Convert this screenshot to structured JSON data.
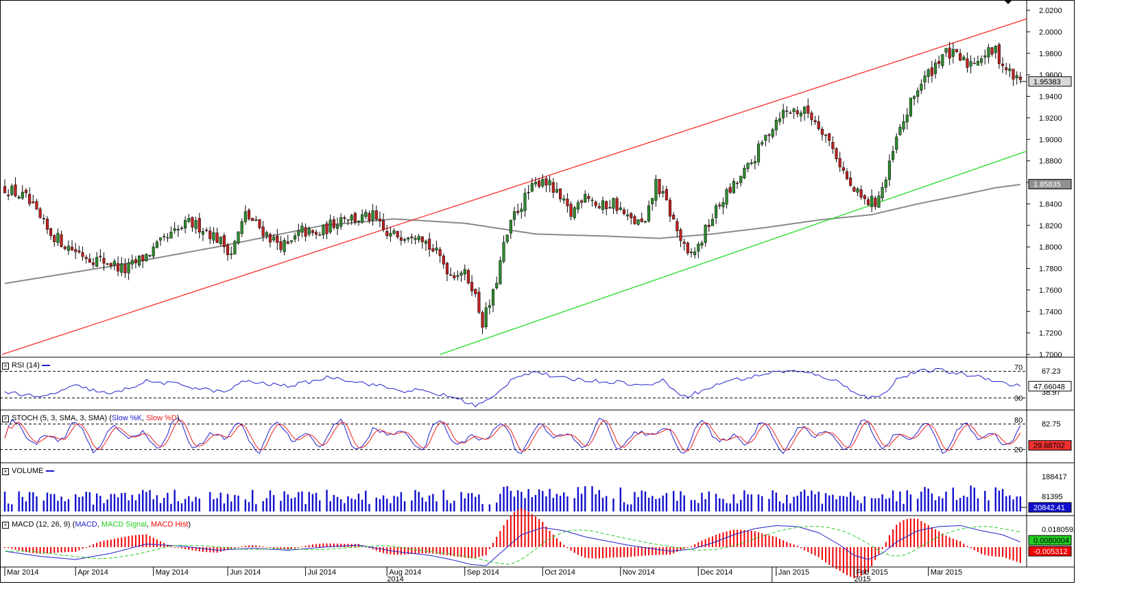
{
  "colors": {
    "bull": "#2e8b2e",
    "bear": "#c02020",
    "wick": "#000000",
    "channel_upper": "#ff2a2a",
    "channel_lower": "#22dd22",
    "ma": "#8a8a8a",
    "rsi": "#2020cc",
    "stoch_k": "#2020cc",
    "stoch_d": "#ee2020",
    "volume": "#1010cc",
    "macd": "#2020cc",
    "macd_signal": "#22cc22",
    "macd_hist": "#ee0000"
  },
  "chart_data": {
    "type": "candlestick",
    "instrument_price_last": "1.95383",
    "price_axis": {
      "range": [
        1.7,
        2.02
      ],
      "ticks": [
        "2.0200",
        "2.0000",
        "1.9800",
        "1.9600",
        "1.9400",
        "1.9200",
        "1.9000",
        "1.8800",
        "1.8600",
        "1.8400",
        "1.8200",
        "1.8000",
        "1.7800",
        "1.7600",
        "1.7400",
        "1.7200",
        "1.7000"
      ]
    },
    "ma_last": "1.85835",
    "months": [
      "Mar 2014",
      "Apr 2014",
      "May 2014",
      "Jun 2014",
      "Jul 2014",
      "Aug 2014",
      "Sep 2014",
      "Oct 2014",
      "Nov 2014",
      "Dec 2014",
      "Jan 2015",
      "Feb 2015",
      "Mar 2015"
    ],
    "years": [
      "2014",
      "2015"
    ],
    "channel": {
      "upper": {
        "from": {
          "date": "Mar 2014",
          "price": 1.7
        },
        "to": {
          "date": "Mar 2015",
          "price": 2.012
        }
      },
      "lower": {
        "from": {
          "date": "Aug 2014",
          "price": 1.7
        },
        "to": {
          "date": "Mar 2015",
          "price": 1.889
        }
      }
    },
    "close_path": [
      [
        0,
        1.855
      ],
      [
        6,
        1.845
      ],
      [
        12,
        1.815
      ],
      [
        18,
        1.8
      ],
      [
        24,
        1.79
      ],
      [
        30,
        1.785
      ],
      [
        34,
        1.778
      ],
      [
        40,
        1.792
      ],
      [
        46,
        1.808
      ],
      [
        52,
        1.822
      ],
      [
        56,
        1.818
      ],
      [
        60,
        1.808
      ],
      [
        64,
        1.795
      ],
      [
        68,
        1.83
      ],
      [
        72,
        1.818
      ],
      [
        76,
        1.806
      ],
      [
        80,
        1.8
      ],
      [
        84,
        1.815
      ],
      [
        88,
        1.81
      ],
      [
        92,
        1.82
      ],
      [
        96,
        1.83
      ],
      [
        99,
        1.826
      ],
      [
        104,
        1.828
      ],
      [
        108,
        1.81
      ],
      [
        113,
        1.812
      ],
      [
        117,
        1.815
      ],
      [
        120,
        1.8
      ],
      [
        123,
        1.79
      ],
      [
        126,
        1.775
      ],
      [
        129,
        1.778
      ],
      [
        132,
        1.765
      ],
      [
        135,
        1.73
      ],
      [
        138,
        1.755
      ],
      [
        141,
        1.8
      ],
      [
        144,
        1.83
      ],
      [
        148,
        1.85
      ],
      [
        152,
        1.865
      ],
      [
        156,
        1.848
      ],
      [
        160,
        1.83
      ],
      [
        164,
        1.852
      ],
      [
        168,
        1.836
      ],
      [
        172,
        1.842
      ],
      [
        176,
        1.826
      ],
      [
        181,
        1.82
      ],
      [
        184,
        1.86
      ],
      [
        187,
        1.84
      ],
      [
        190,
        1.815
      ],
      [
        193,
        1.79
      ],
      [
        196,
        1.8
      ],
      [
        199,
        1.822
      ],
      [
        203,
        1.845
      ],
      [
        207,
        1.86
      ],
      [
        211,
        1.878
      ],
      [
        215,
        1.902
      ],
      [
        219,
        1.924
      ],
      [
        223,
        1.927
      ],
      [
        227,
        1.925
      ],
      [
        231,
        1.91
      ],
      [
        235,
        1.885
      ],
      [
        239,
        1.855
      ],
      [
        243,
        1.842
      ],
      [
        246,
        1.842
      ],
      [
        249,
        1.862
      ],
      [
        252,
        1.9
      ],
      [
        255,
        1.925
      ],
      [
        258,
        1.948
      ],
      [
        262,
        1.965
      ],
      [
        265,
        1.98
      ],
      [
        268,
        1.978
      ],
      [
        272,
        1.97
      ],
      [
        276,
        1.978
      ],
      [
        280,
        1.982
      ],
      [
        282,
        1.97
      ],
      [
        285,
        1.958
      ],
      [
        287,
        1.954
      ]
    ],
    "ma_path": [
      [
        0,
        1.766
      ],
      [
        30,
        1.782
      ],
      [
        60,
        1.8
      ],
      [
        90,
        1.82
      ],
      [
        110,
        1.826
      ],
      [
        130,
        1.822
      ],
      [
        150,
        1.812
      ],
      [
        170,
        1.81
      ],
      [
        185,
        1.808
      ],
      [
        200,
        1.812
      ],
      [
        215,
        1.818
      ],
      [
        230,
        1.825
      ],
      [
        245,
        1.83
      ],
      [
        258,
        1.84
      ],
      [
        270,
        1.848
      ],
      [
        280,
        1.855
      ],
      [
        287,
        1.858
      ]
    ],
    "rsi": {
      "title": "RSI (14)",
      "levels": [
        "70",
        "30"
      ],
      "last": "47.66048",
      "labels": [
        "67.23",
        "38.97"
      ],
      "path": [
        [
          0,
          40
        ],
        [
          10,
          30
        ],
        [
          20,
          48
        ],
        [
          30,
          35
        ],
        [
          40,
          55
        ],
        [
          50,
          50
        ],
        [
          55,
          44
        ],
        [
          58,
          42
        ],
        [
          62,
          38
        ],
        [
          68,
          56
        ],
        [
          72,
          52
        ],
        [
          80,
          48
        ],
        [
          86,
          54
        ],
        [
          92,
          62
        ],
        [
          96,
          58
        ],
        [
          104,
          50
        ],
        [
          108,
          46
        ],
        [
          112,
          40
        ],
        [
          116,
          42
        ],
        [
          120,
          38
        ],
        [
          126,
          32
        ],
        [
          130,
          25
        ],
        [
          133,
          18
        ],
        [
          138,
          30
        ],
        [
          144,
          62
        ],
        [
          150,
          70
        ],
        [
          156,
          60
        ],
        [
          162,
          58
        ],
        [
          168,
          55
        ],
        [
          174,
          54
        ],
        [
          180,
          48
        ],
        [
          186,
          56
        ],
        [
          192,
          32
        ],
        [
          198,
          42
        ],
        [
          204,
          56
        ],
        [
          210,
          60
        ],
        [
          216,
          68
        ],
        [
          222,
          71
        ],
        [
          228,
          66
        ],
        [
          234,
          58
        ],
        [
          240,
          40
        ],
        [
          244,
          30
        ],
        [
          248,
          34
        ],
        [
          252,
          58
        ],
        [
          258,
          70
        ],
        [
          264,
          72
        ],
        [
          270,
          66
        ],
        [
          276,
          62
        ],
        [
          280,
          56
        ],
        [
          284,
          50
        ],
        [
          287,
          48
        ]
      ]
    },
    "stoch": {
      "title": "STOCH (5, 3, SMA, 3, SMA)",
      "k_label": "Slow %K",
      "d_label": "Slow %D",
      "levels": [
        "80",
        "20"
      ],
      "last": "29.68702",
      "label": "82.75"
    },
    "volume": {
      "title": "VOLUME",
      "labels": [
        "188417",
        "81395"
      ],
      "last": "20842.41"
    },
    "macd": {
      "title": "MACD (12, 26, 9)",
      "macd_label": "MACD",
      "signal_label": "MACD Signal",
      "hist_label": "MACD Hist",
      "labels": [
        "0.0180592",
        "0.0080004",
        "-0.005312"
      ],
      "path": [
        [
          0,
          -0.004
        ],
        [
          10,
          -0.009
        ],
        [
          20,
          -0.012
        ],
        [
          30,
          -0.006
        ],
        [
          40,
          0.003
        ],
        [
          50,
          0.001
        ],
        [
          60,
          -0.003
        ],
        [
          70,
          -0.001
        ],
        [
          80,
          -0.003
        ],
        [
          90,
          0.0
        ],
        [
          100,
          0.002
        ],
        [
          110,
          -0.004
        ],
        [
          120,
          -0.008
        ],
        [
          126,
          -0.012
        ],
        [
          132,
          -0.017
        ],
        [
          136,
          -0.018
        ],
        [
          140,
          -0.006
        ],
        [
          146,
          0.012
        ],
        [
          152,
          0.019
        ],
        [
          158,
          0.016
        ],
        [
          164,
          0.01
        ],
        [
          170,
          0.006
        ],
        [
          176,
          0.002
        ],
        [
          182,
          -0.001
        ],
        [
          188,
          -0.004
        ],
        [
          194,
          -0.002
        ],
        [
          200,
          0.004
        ],
        [
          206,
          0.012
        ],
        [
          212,
          0.018
        ],
        [
          218,
          0.021
        ],
        [
          224,
          0.02
        ],
        [
          230,
          0.014
        ],
        [
          236,
          0.002
        ],
        [
          240,
          -0.008
        ],
        [
          244,
          -0.012
        ],
        [
          248,
          -0.006
        ],
        [
          252,
          0.005
        ],
        [
          258,
          0.016
        ],
        [
          264,
          0.02
        ],
        [
          270,
          0.021
        ],
        [
          276,
          0.016
        ],
        [
          282,
          0.012
        ],
        [
          287,
          0.005
        ]
      ]
    }
  }
}
